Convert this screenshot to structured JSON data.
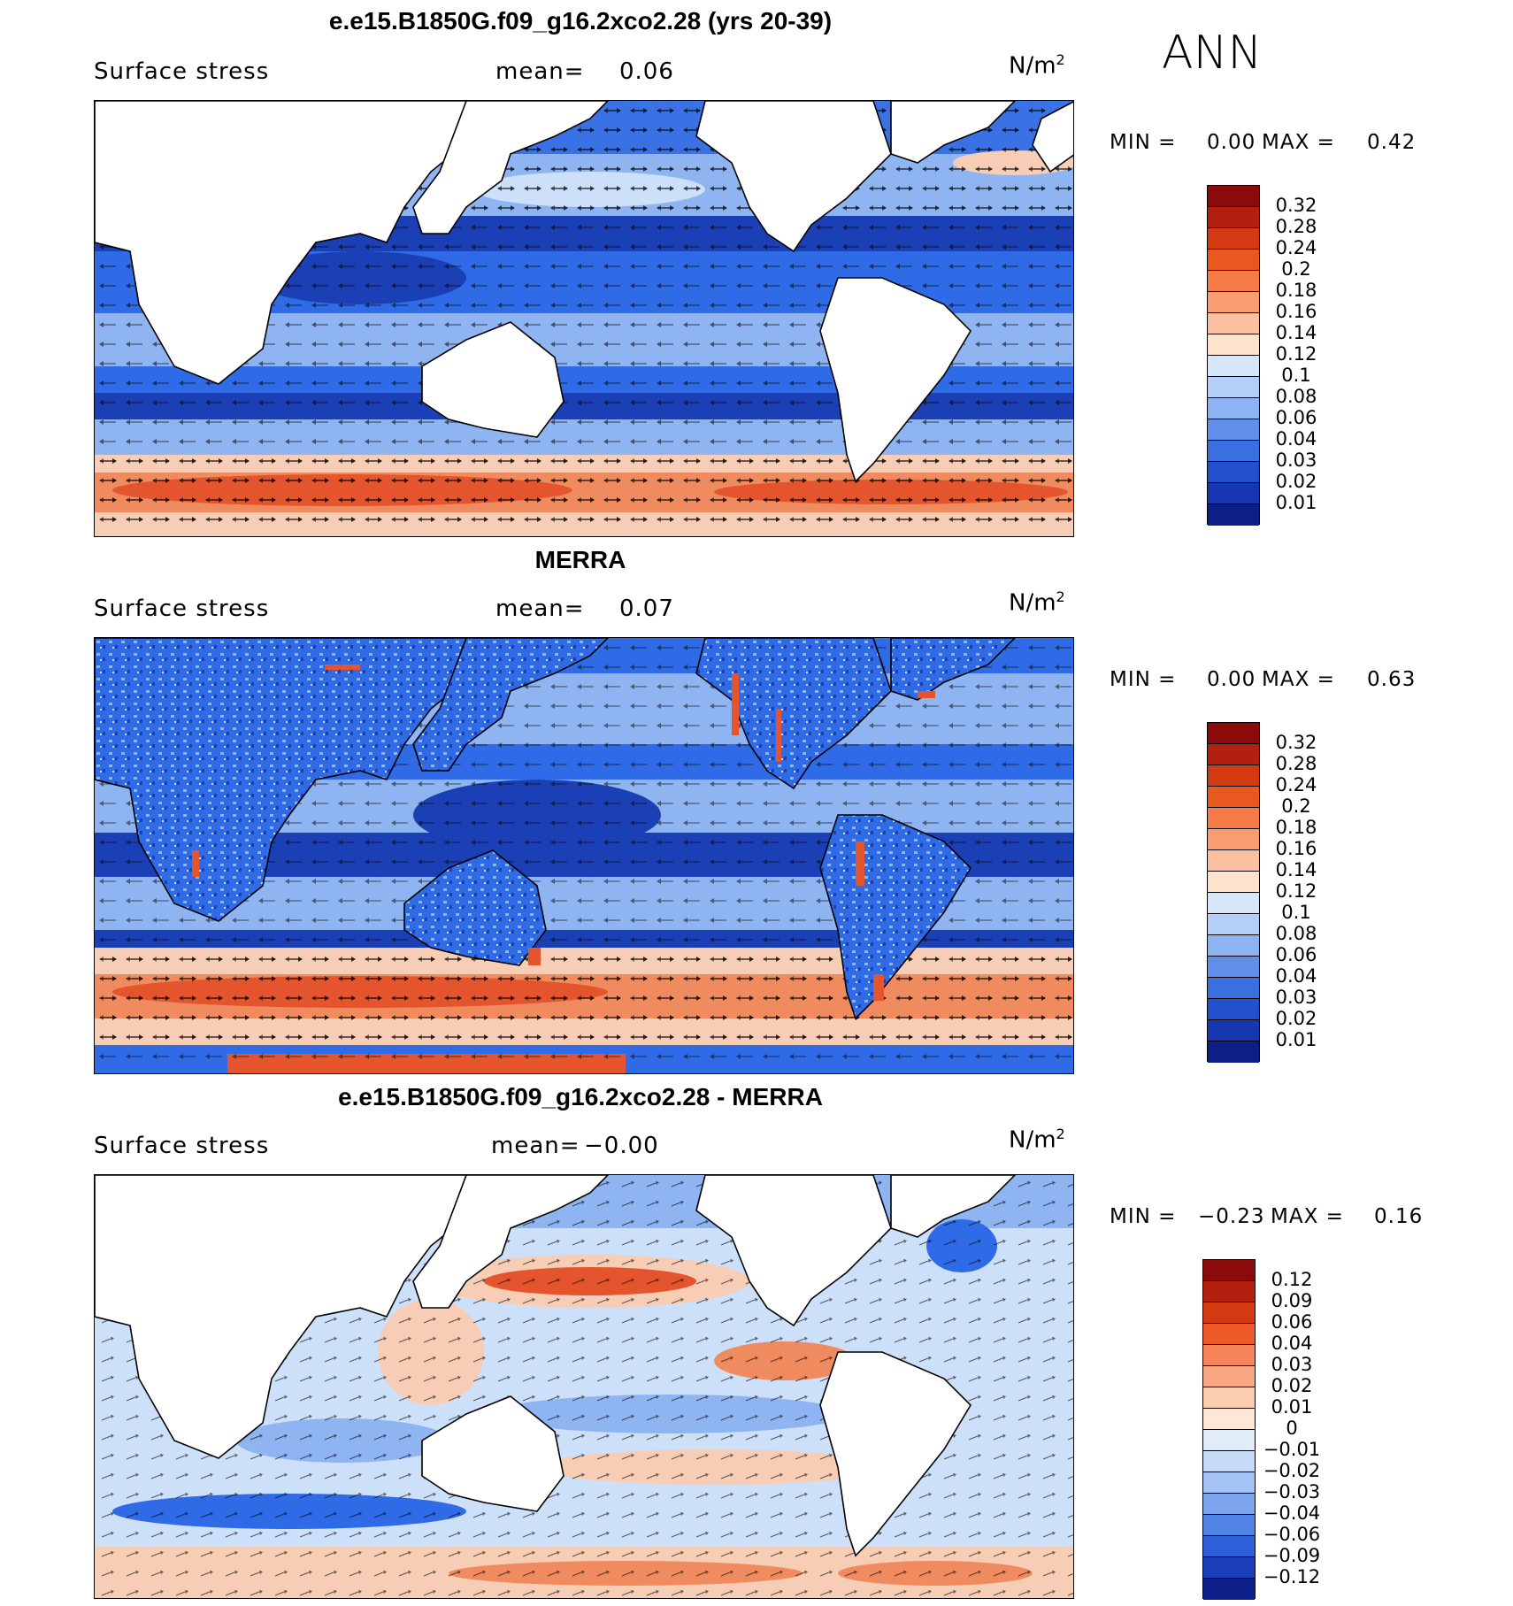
{
  "season": "ANN",
  "colors": {
    "ocean_deep": "#1b3fb5",
    "ocean_mid": "#2f6be6",
    "ocean_light": "#8fb4f2",
    "ocean_pale": "#cde0fa",
    "warm_light": "#f7cdb5",
    "warm_mid": "#f08b5f",
    "warm_strong": "#e4552d",
    "land": "#ffffff"
  },
  "panels": [
    {
      "title": "e.e15.B1850G.f09_g16.2xco2.28 (yrs 20-39)",
      "label": "Surface stress",
      "mean_label": "mean=",
      "mean_value": "0.06",
      "unit": "N/m",
      "unit_exp": "2",
      "min_label": "MIN =",
      "min_value": "0.00",
      "max_label": "MAX =",
      "max_value": "0.42",
      "colorbar": {
        "labels": [
          "0.32",
          "0.28",
          "0.24",
          "0.2",
          "0.18",
          "0.16",
          "0.14",
          "0.12",
          "0.1",
          "0.08",
          "0.06",
          "0.04",
          "0.03",
          "0.02",
          "0.01"
        ],
        "colors": [
          "#8b0a0a",
          "#b3200f",
          "#d43a12",
          "#e9581f",
          "#f57a45",
          "#f99c70",
          "#fbc0a0",
          "#fde2cc",
          "#d6e6fb",
          "#b4cff7",
          "#8eb3f2",
          "#5f8fe8",
          "#3a6fe0",
          "#2351cd",
          "#1637b0",
          "#0c1f88"
        ]
      }
    },
    {
      "title": "MERRA",
      "label": "Surface stress",
      "mean_label": "mean=",
      "mean_value": "0.07",
      "unit": "N/m",
      "unit_exp": "2",
      "min_label": "MIN =",
      "min_value": "0.00",
      "max_label": "MAX =",
      "max_value": "0.63",
      "colorbar": {
        "labels": [
          "0.32",
          "0.28",
          "0.24",
          "0.2",
          "0.18",
          "0.16",
          "0.14",
          "0.12",
          "0.1",
          "0.08",
          "0.06",
          "0.04",
          "0.03",
          "0.02",
          "0.01"
        ],
        "colors": [
          "#8b0a0a",
          "#b3200f",
          "#d43a12",
          "#e9581f",
          "#f57a45",
          "#f99c70",
          "#fbc0a0",
          "#fde2cc",
          "#d6e6fb",
          "#b4cff7",
          "#8eb3f2",
          "#5f8fe8",
          "#3a6fe0",
          "#2351cd",
          "#1637b0",
          "#0c1f88"
        ]
      }
    },
    {
      "title": "e.e15.B1850G.f09_g16.2xco2.28 - MERRA",
      "label": "Surface stress",
      "mean_label": "mean=",
      "mean_value": "−0.00",
      "unit": "N/m",
      "unit_exp": "2",
      "min_label": "MIN =",
      "min_value": "−0.23",
      "max_label": "MAX =",
      "max_value": "0.16",
      "colorbar": {
        "labels": [
          "0.12",
          "0.09",
          "0.06",
          "0.04",
          "0.03",
          "0.02",
          "0.01",
          "0",
          "−0.01",
          "−0.02",
          "−0.03",
          "−0.04",
          "−0.06",
          "−0.09",
          "−0.12"
        ],
        "colors": [
          "#8b0a0a",
          "#b3200f",
          "#d43a12",
          "#ef5a2a",
          "#f5845a",
          "#f9a883",
          "#fbcdb0",
          "#fde8d8",
          "#e1ecfb",
          "#c6dbf8",
          "#a4c2f3",
          "#7ea6ee",
          "#5284e6",
          "#2f5fd8",
          "#1a3fb8",
          "#0c1f88"
        ]
      }
    }
  ]
}
